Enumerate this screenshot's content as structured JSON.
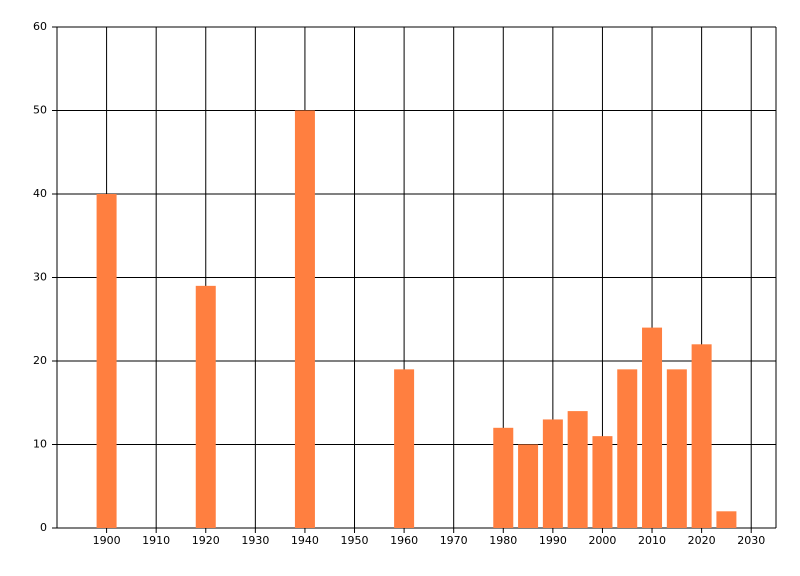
{
  "chart_data": {
    "type": "bar",
    "x": [
      1900,
      1920,
      1940,
      1960,
      1980,
      1985,
      1990,
      1995,
      2000,
      2005,
      2010,
      2015,
      2020,
      2025
    ],
    "values": [
      40,
      29,
      50,
      19,
      12,
      10,
      13,
      14,
      11,
      19,
      24,
      19,
      22,
      2
    ],
    "color": "#ff7f40",
    "xlim": [
      1890,
      2035
    ],
    "xticks": [
      1900,
      1910,
      1920,
      1930,
      1940,
      1950,
      1960,
      1970,
      1980,
      1990,
      2000,
      2010,
      2020,
      2030
    ],
    "ylim": [
      0,
      60
    ],
    "yticks": [
      0,
      10,
      20,
      30,
      40,
      50,
      60
    ],
    "grid": true
  }
}
